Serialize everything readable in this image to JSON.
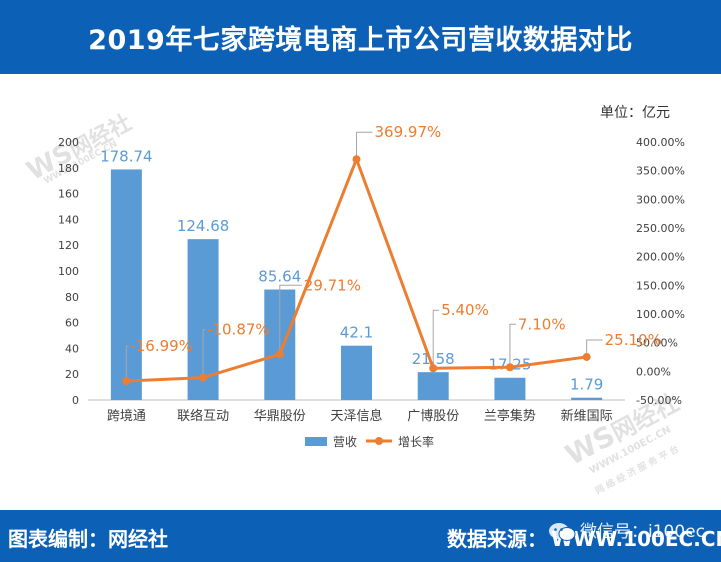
{
  "header": {
    "title": "2019年七家跨境电商上市公司营收数据对比"
  },
  "unit_label": "单位：亿元",
  "watermark": {
    "logo": "WS",
    "brand": "网经社",
    "url": "WWW.100EC.CN",
    "slogan": "网络经济服务平台"
  },
  "footer": {
    "left_text": "图表编制：网经社",
    "right_label": "数据来源：",
    "right_url": "WWW.100EC.CN",
    "wechat_text": "微信号：i100ec"
  },
  "colors": {
    "bar": "#5b9bd5",
    "line": "#ed7d31",
    "header_bg": "#0c61b6",
    "axis_text": "#404040"
  },
  "chart_data": {
    "type": "bar",
    "categories": [
      "跨境通",
      "联络互动",
      "华鼎股份",
      "天泽信息",
      "广博股份",
      "兰亭集势",
      "新维国际"
    ],
    "series": [
      {
        "name": "营收",
        "type": "bar",
        "axis": "left",
        "values": [
          178.74,
          124.68,
          85.64,
          42.1,
          21.58,
          17.25,
          1.79
        ],
        "labels": [
          "178.74",
          "124.68",
          "85.64",
          "42.1",
          "21.58",
          "17.25",
          "1.79"
        ]
      },
      {
        "name": "增长率",
        "type": "line",
        "axis": "right",
        "values": [
          -16.99,
          -10.87,
          29.71,
          369.97,
          5.4,
          7.1,
          25.1
        ],
        "labels": [
          "-16.99%",
          "-10.87%",
          "29.71%",
          "369.97%",
          "5.40%",
          "7.10%",
          "25.10%"
        ]
      }
    ],
    "y_left": {
      "min": 0,
      "max": 200,
      "step": 20,
      "ticks": [
        "0",
        "20",
        "40",
        "60",
        "80",
        "100",
        "120",
        "140",
        "160",
        "180",
        "200"
      ]
    },
    "y_right": {
      "min": -50,
      "max": 400,
      "step": 50,
      "ticks": [
        "-50.00%",
        "0.00%",
        "50.00%",
        "100.00%",
        "150.00%",
        "200.00%",
        "250.00%",
        "300.00%",
        "350.00%",
        "400.00%"
      ]
    },
    "legend": {
      "position": "bottom",
      "items": [
        "营收",
        "增长率"
      ]
    },
    "grid": false
  }
}
